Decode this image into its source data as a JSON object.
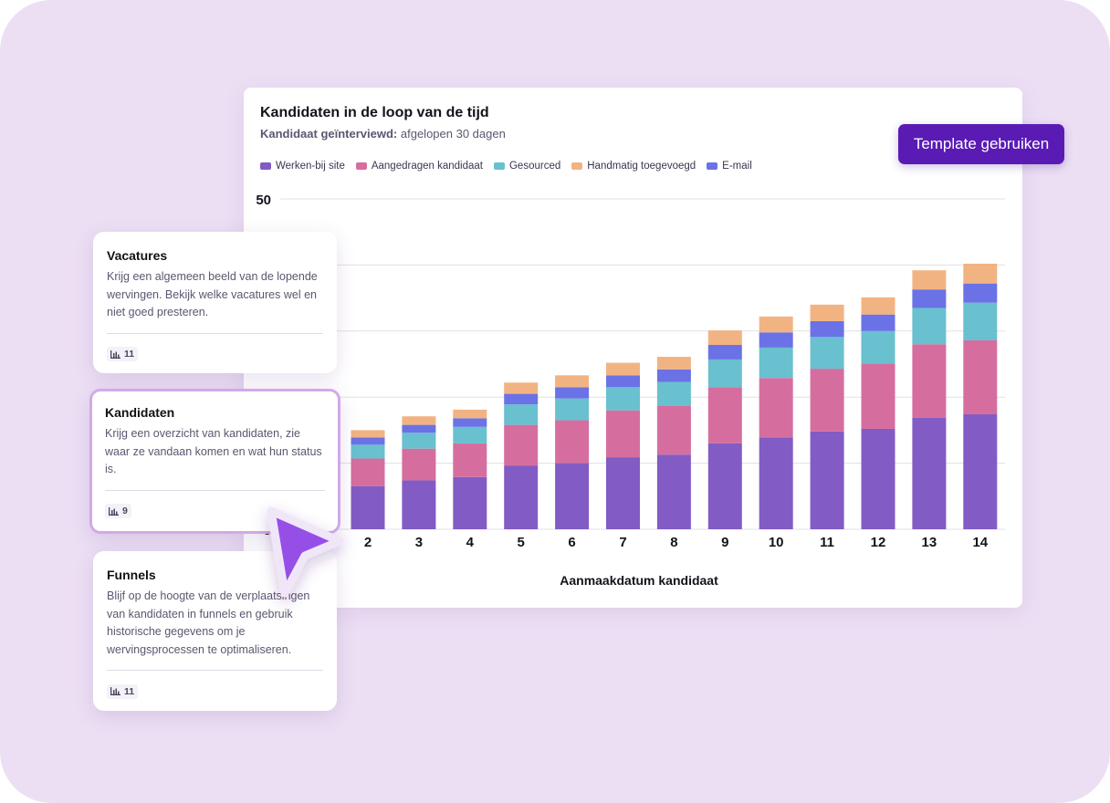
{
  "chart_card": {
    "title": "Kandidaten in de loop van de tijd",
    "subtitle_label": "Kandidaat geïnterviewd:",
    "subtitle_value": "afgelopen 30 dagen",
    "button": "Template gebruiken"
  },
  "cards": [
    {
      "title": "Vacatures",
      "text": "Krijg een algemeen beeld van de lopende wervingen. Bekijk welke vacatures wel en niet goed presteren.",
      "count": "11",
      "icon": "bar-chart-icon"
    },
    {
      "title": "Kandidaten",
      "text": "Krijg een overzicht van kandidaten, zie waar ze vandaan komen en wat hun status is.",
      "count": "9",
      "icon": "bar-chart-icon",
      "selected": true
    },
    {
      "title": "Funnels",
      "text": "Blijf op de hoogte van de verplaatsingen van kandidaten in funnels en gebruik historische gegevens om je wervingsprocessen te optimaliseren.",
      "count": "11",
      "icon": "bar-chart-icon"
    }
  ],
  "cursor": {
    "icon": "cursor-arrow-icon",
    "color": "#9650e6"
  },
  "chart_data": {
    "type": "bar",
    "stacked": true,
    "xlabel": "Aanmaakdatum kandidaat",
    "ylabel": "",
    "ylim": [
      0,
      50
    ],
    "yticks": [
      0,
      10,
      20,
      30,
      40,
      50
    ],
    "grid": true,
    "legend_position": "top-left",
    "categories": [
      "2",
      "3",
      "4",
      "5",
      "6",
      "7",
      "8",
      "9",
      "10",
      "11",
      "12",
      "13",
      "14"
    ],
    "series": [
      {
        "name": "Werken-bij site",
        "color": "#825bc4",
        "values": [
          6.5,
          7.4,
          7.9,
          9.6,
          10.0,
          10.9,
          11.3,
          13.0,
          13.9,
          14.8,
          15.2,
          16.9,
          17.4
        ]
      },
      {
        "name": "Aangedragen kandidaat",
        "color": "#d56e9f",
        "values": [
          4.2,
          4.8,
          5.1,
          6.2,
          6.5,
          7.1,
          7.4,
          8.5,
          9.0,
          9.5,
          9.9,
          11.1,
          11.2
        ]
      },
      {
        "name": "Gesourced",
        "color": "#69c0cf",
        "values": [
          2.1,
          2.4,
          2.5,
          3.1,
          3.3,
          3.5,
          3.6,
          4.2,
          4.6,
          4.8,
          4.9,
          5.5,
          5.7
        ]
      },
      {
        "name": "E-mail",
        "color": "#6b72e6",
        "values": [
          1.1,
          1.2,
          1.3,
          1.6,
          1.7,
          1.8,
          1.9,
          2.2,
          2.3,
          2.4,
          2.5,
          2.8,
          2.9
        ]
      },
      {
        "name": "Handmatig toegevoegd",
        "color": "#f2b383",
        "values": [
          1.1,
          1.3,
          1.3,
          1.7,
          1.8,
          1.9,
          1.9,
          2.2,
          2.4,
          2.5,
          2.6,
          2.9,
          3.0
        ]
      }
    ],
    "legend_order": [
      "Werken-bij site",
      "Aangedragen kandidaat",
      "Gesourced",
      "Handmatig toegevoegd",
      "E-mail"
    ]
  }
}
